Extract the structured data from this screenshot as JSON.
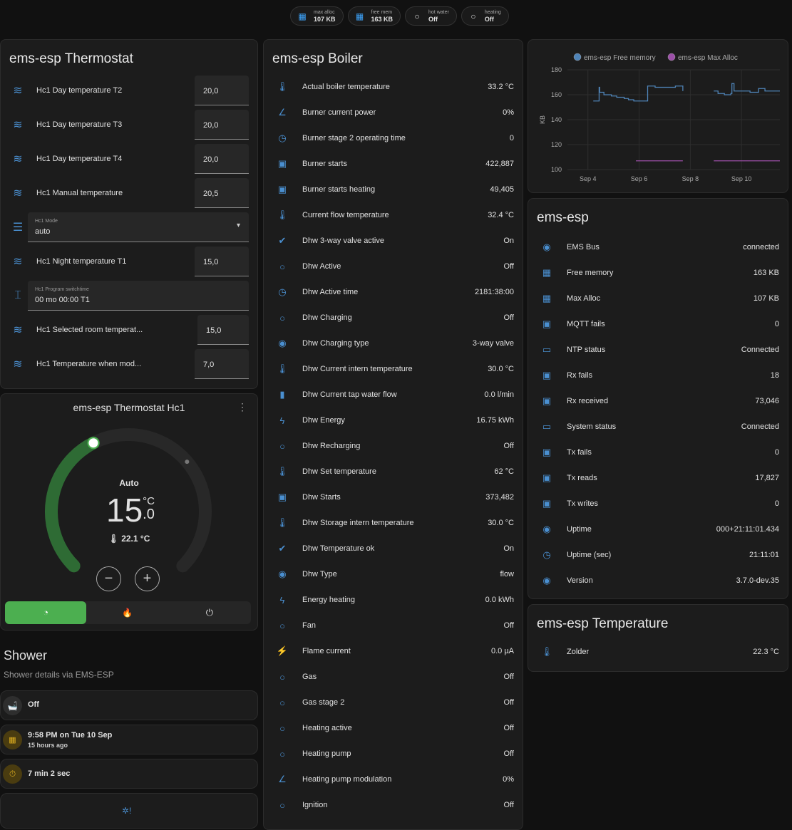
{
  "chips": [
    {
      "icon": "chip-icon",
      "label": "max alloc",
      "value": "107 KB"
    },
    {
      "icon": "chip-icon",
      "label": "free mem",
      "value": "163 KB"
    },
    {
      "icon": "circle-outline-icon",
      "label": "hot water",
      "value": "Off"
    },
    {
      "icon": "circle-outline-icon",
      "label": "heating",
      "value": "Off"
    }
  ],
  "thermostat": {
    "title": "ems-esp Thermostat",
    "rows": [
      {
        "type": "number",
        "icon": "water-thermometer-icon",
        "label": "Hc1 Day temperature T2",
        "value": "20,0"
      },
      {
        "type": "number",
        "icon": "water-thermometer-icon",
        "label": "Hc1 Day temperature T3",
        "value": "20,0"
      },
      {
        "type": "number",
        "icon": "water-thermometer-icon",
        "label": "Hc1 Day temperature T4",
        "value": "20,0"
      },
      {
        "type": "number",
        "icon": "water-thermometer-icon",
        "label": "Hc1 Manual temperature",
        "value": "20,5"
      },
      {
        "type": "select",
        "icon": "list-icon",
        "label": "Hc1 Mode",
        "value": "auto"
      },
      {
        "type": "number",
        "icon": "water-thermometer-icon",
        "label": "Hc1 Night temperature T1",
        "value": "15,0"
      },
      {
        "type": "text",
        "icon": "form-textbox-icon",
        "label": "Hc1 Program switchtime",
        "value": "00 mo 00:00 T1"
      },
      {
        "type": "number",
        "icon": "water-thermometer-icon",
        "label": "Hc1 Selected room temperat...",
        "value": "15,0"
      },
      {
        "type": "number",
        "icon": "water-thermometer-icon",
        "label": "Hc1 Temperature when mod...",
        "value": "7,0"
      }
    ]
  },
  "climate": {
    "title": "ems-esp Thermostat Hc1",
    "mode": "Auto",
    "target_int": "15",
    "target_dec": ".0",
    "unit": "°C",
    "current": "22.1 °C",
    "target": 15.0,
    "min": 5,
    "max": 30,
    "current_value": 22.1,
    "accent": "#4caf50",
    "modes": [
      "auto-mode",
      "heat-mode",
      "off-mode"
    ],
    "active_mode": 0
  },
  "shower": {
    "title": "Shower",
    "subtitle": "Shower details via EMS-ESP",
    "state": "Off",
    "last": "9:58 PM on Tue 10 Sep",
    "last_ago": "15 hours ago",
    "duration": "7 min 2 sec"
  },
  "boiler": {
    "title": "ems-esp Boiler",
    "rows": [
      {
        "icon": "thermometer-icon",
        "label": "Actual boiler temperature",
        "value": "33.2 °C"
      },
      {
        "icon": "angle-icon",
        "label": "Burner current power",
        "value": "0%"
      },
      {
        "icon": "timer-icon",
        "label": "Burner stage 2 operating time",
        "value": "0"
      },
      {
        "icon": "counter-icon",
        "label": "Burner starts",
        "value": "422,887"
      },
      {
        "icon": "counter-icon",
        "label": "Burner starts heating",
        "value": "49,405"
      },
      {
        "icon": "thermometer-icon",
        "label": "Current flow temperature",
        "value": "32.4 °C"
      },
      {
        "icon": "check-circle-icon",
        "label": "Dhw 3-way valve active",
        "value": "On"
      },
      {
        "icon": "circle-outline-icon",
        "label": "Dhw Active",
        "value": "Off"
      },
      {
        "icon": "timer-icon",
        "label": "Dhw Active time",
        "value": "2181:38:00"
      },
      {
        "icon": "circle-outline-icon",
        "label": "Dhw Charging",
        "value": "Off"
      },
      {
        "icon": "eye-icon",
        "label": "Dhw Charging type",
        "value": "3-way valve"
      },
      {
        "icon": "thermometer-icon",
        "label": "Dhw Current intern temperature",
        "value": "30.0 °C"
      },
      {
        "icon": "water-pump-icon",
        "label": "Dhw Current tap water flow",
        "value": "0.0 l/min"
      },
      {
        "icon": "flash-icon",
        "label": "Dhw Energy",
        "value": "16.75 kWh"
      },
      {
        "icon": "circle-outline-icon",
        "label": "Dhw Recharging",
        "value": "Off"
      },
      {
        "icon": "thermometer-icon",
        "label": "Dhw Set temperature",
        "value": "62 °C"
      },
      {
        "icon": "counter-icon",
        "label": "Dhw Starts",
        "value": "373,482"
      },
      {
        "icon": "thermometer-icon",
        "label": "Dhw Storage intern temperature",
        "value": "30.0 °C"
      },
      {
        "icon": "check-circle-icon",
        "label": "Dhw Temperature ok",
        "value": "On"
      },
      {
        "icon": "eye-icon",
        "label": "Dhw Type",
        "value": "flow"
      },
      {
        "icon": "flash-icon",
        "label": "Energy heating",
        "value": "0.0 kWh"
      },
      {
        "icon": "circle-outline-icon",
        "label": "Fan",
        "value": "Off"
      },
      {
        "icon": "flash-circle-icon",
        "label": "Flame current",
        "value": "0.0 µA"
      },
      {
        "icon": "circle-outline-icon",
        "label": "Gas",
        "value": "Off"
      },
      {
        "icon": "circle-outline-icon",
        "label": "Gas stage 2",
        "value": "Off"
      },
      {
        "icon": "circle-outline-icon",
        "label": "Heating active",
        "value": "Off"
      },
      {
        "icon": "circle-outline-icon",
        "label": "Heating pump",
        "value": "Off"
      },
      {
        "icon": "angle-icon",
        "label": "Heating pump modulation",
        "value": "0%"
      },
      {
        "icon": "circle-outline-icon",
        "label": "Ignition",
        "value": "Off"
      }
    ]
  },
  "chart_data": {
    "type": "line",
    "title": "",
    "xlabel": "",
    "ylabel": "KB",
    "ylim": [
      100,
      180
    ],
    "yticks": [
      100,
      120,
      140,
      160,
      180
    ],
    "xticks": [
      "Sep 4",
      "Sep 6",
      "Sep 8",
      "Sep 10"
    ],
    "grid": true,
    "legend": "top",
    "step": true,
    "series": [
      {
        "name": "ems-esp Free memory",
        "color": "#4f84b8",
        "points": [
          [
            "09-04 05:00",
            155
          ],
          [
            "09-04 10:00",
            155
          ],
          [
            "09-04 10:30",
            166
          ],
          [
            "09-04 11:00",
            162
          ],
          [
            "09-04 15:00",
            160
          ],
          [
            "09-04 22:00",
            159
          ],
          [
            "09-05 03:00",
            158
          ],
          [
            "09-05 10:00",
            157
          ],
          [
            "09-05 14:00",
            156
          ],
          [
            "09-05 19:00",
            155
          ],
          [
            "09-06 07:00",
            155
          ],
          [
            "09-06 08:00",
            167
          ],
          [
            "09-06 15:00",
            166
          ],
          [
            "09-07 07:00",
            166
          ],
          [
            "09-07 10:00",
            167
          ],
          [
            "09-07 17:00",
            163
          ],
          null,
          [
            "09-08 22:00",
            163
          ],
          [
            "09-09 02:00",
            161
          ],
          [
            "09-09 08:00",
            160
          ],
          [
            "09-09 14:00",
            161
          ],
          [
            "09-09 15:00",
            169
          ],
          [
            "09-09 17:00",
            163
          ],
          [
            "09-10 03:00",
            163
          ],
          [
            "09-10 08:00",
            162
          ],
          [
            "09-10 15:00",
            162
          ],
          [
            "09-10 16:00",
            165
          ],
          [
            "09-10 22:00",
            163
          ],
          [
            "09-11 12:00",
            163
          ]
        ]
      },
      {
        "name": "ems-esp Max Alloc",
        "color": "#9c4fa8",
        "points": [
          [
            "09-05 21:00",
            107
          ],
          [
            "09-07 17:00",
            107
          ],
          null,
          [
            "09-08 22:00",
            107
          ],
          [
            "09-11 12:00",
            107
          ]
        ]
      }
    ]
  },
  "system": {
    "title": "ems-esp",
    "rows": [
      {
        "icon": "eye-icon",
        "label": "EMS Bus",
        "value": "connected"
      },
      {
        "icon": "chip-icon",
        "label": "Free memory",
        "value": "163 KB"
      },
      {
        "icon": "chip-icon",
        "label": "Max Alloc",
        "value": "107 KB"
      },
      {
        "icon": "counter-icon",
        "label": "MQTT fails",
        "value": "0"
      },
      {
        "icon": "monitor-check-icon",
        "label": "NTP status",
        "value": "Connected"
      },
      {
        "icon": "counter-icon",
        "label": "Rx fails",
        "value": "18"
      },
      {
        "icon": "counter-icon",
        "label": "Rx received",
        "value": "73,046"
      },
      {
        "icon": "monitor-check-icon",
        "label": "System status",
        "value": "Connected"
      },
      {
        "icon": "counter-icon",
        "label": "Tx fails",
        "value": "0"
      },
      {
        "icon": "counter-icon",
        "label": "Tx reads",
        "value": "17,827"
      },
      {
        "icon": "counter-icon",
        "label": "Tx writes",
        "value": "0"
      },
      {
        "icon": "eye-icon",
        "label": "Uptime",
        "value": "000+21:11:01.434"
      },
      {
        "icon": "timer-icon",
        "label": "Uptime (sec)",
        "value": "21:11:01"
      },
      {
        "icon": "eye-icon",
        "label": "Version",
        "value": "3.7.0-dev.35"
      }
    ]
  },
  "temperature": {
    "title": "ems-esp Temperature",
    "rows": [
      {
        "icon": "thermometer-icon",
        "label": "Zolder",
        "value": "22.3 °C"
      }
    ]
  }
}
